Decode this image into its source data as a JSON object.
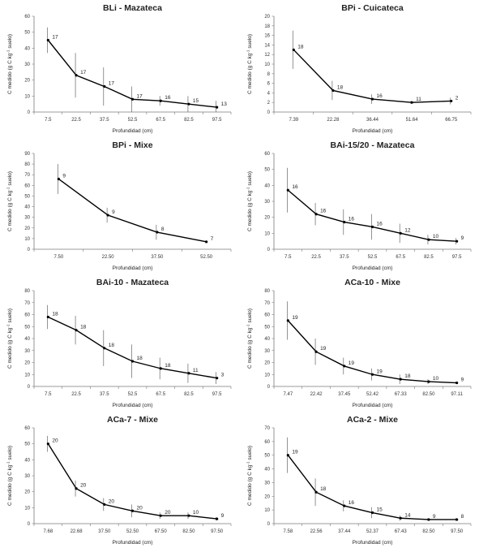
{
  "ylabel_prefix": "C medido (g C kg",
  "ylabel_sup": "-1",
  "ylabel_suffix": " suelo)",
  "chart_data": [
    {
      "type": "line",
      "title": "BLi - Mazateca",
      "xlabel": "Profundidad (cm)",
      "ylim": [
        0,
        60
      ],
      "yticks": [
        0,
        10,
        20,
        30,
        40,
        50,
        60
      ],
      "categories": [
        "7.5",
        "22.5",
        "37.5",
        "52.5",
        "67.5",
        "82.5",
        "97.5"
      ],
      "values": [
        45,
        23,
        16,
        8,
        7,
        5,
        3
      ],
      "err": [
        8,
        14,
        12,
        8,
        3,
        5,
        4
      ],
      "n": [
        "17",
        "17",
        "17",
        "17",
        "16",
        "15",
        "13"
      ]
    },
    {
      "type": "line",
      "title": "BPi - Cuicateca",
      "xlabel": "Profundidad (cm)",
      "ylim": [
        0,
        20
      ],
      "yticks": [
        0,
        2,
        4,
        6,
        8,
        10,
        12,
        14,
        16,
        18,
        20
      ],
      "categories": [
        "7.39",
        "22.28",
        "36.44",
        "51.64",
        "66.75"
      ],
      "values": [
        13,
        4.5,
        2.7,
        2,
        2.3
      ],
      "err": [
        4,
        2,
        1,
        0.3,
        0.7
      ],
      "n": [
        "18",
        "18",
        "16",
        "11",
        "2"
      ]
    },
    {
      "type": "line",
      "title": "BPi - Mixe",
      "xlabel": "Profundidad (cm)",
      "ylim": [
        0,
        90
      ],
      "yticks": [
        0,
        10,
        20,
        30,
        40,
        50,
        60,
        70,
        80,
        90
      ],
      "categories": [
        "7.50",
        "22.50",
        "37.50",
        "52.50"
      ],
      "values": [
        66,
        32,
        16,
        7
      ],
      "err": [
        14,
        7,
        7,
        1
      ],
      "n": [
        "9",
        "9",
        "8",
        "7"
      ]
    },
    {
      "type": "line",
      "title": "BAi-15/20 - Mazateca",
      "xlabel": "Profundidad (cm)",
      "ylim": [
        0,
        60
      ],
      "yticks": [
        0,
        10,
        20,
        30,
        40,
        50,
        60
      ],
      "categories": [
        "7.5",
        "22.5",
        "37.5",
        "52.5",
        "67.5",
        "82.5",
        "97.5"
      ],
      "values": [
        37,
        22,
        17,
        14,
        10,
        6,
        5
      ],
      "err": [
        14,
        7,
        8,
        8,
        6,
        3,
        2
      ],
      "n": [
        "16",
        "16",
        "16",
        "16",
        "12",
        "10",
        "9"
      ]
    },
    {
      "type": "line",
      "title": "BAi-10 - Mazateca",
      "xlabel": "Profundidad (cm)",
      "ylim": [
        0,
        80
      ],
      "yticks": [
        0,
        10,
        20,
        30,
        40,
        50,
        60,
        70,
        80
      ],
      "categories": [
        "7.5",
        "22.5",
        "37.5",
        "52.5",
        "67.5",
        "82.5",
        "97.5"
      ],
      "values": [
        58,
        47,
        32,
        21,
        15,
        11,
        7
      ],
      "err": [
        10,
        12,
        15,
        14,
        9,
        8,
        5
      ],
      "n": [
        "18",
        "18",
        "18",
        "18",
        "18",
        "11",
        "3"
      ]
    },
    {
      "type": "line",
      "title": "ACa-10 - Mixe",
      "xlabel": "Profundidad (cm)",
      "ylim": [
        0,
        80
      ],
      "yticks": [
        0,
        10,
        20,
        30,
        40,
        50,
        60,
        70,
        80
      ],
      "categories": [
        "7.47",
        "22.42",
        "37.45",
        "52.42",
        "67.33",
        "82.50",
        "97.11"
      ],
      "values": [
        55,
        29,
        17,
        10,
        6,
        4,
        3
      ],
      "err": [
        16,
        11,
        7,
        5,
        4,
        2,
        1
      ],
      "n": [
        "19",
        "19",
        "19",
        "19",
        "18",
        "10",
        "9"
      ]
    },
    {
      "type": "line",
      "title": "ACa-7 - Mixe",
      "xlabel": "Profundidad (cm)",
      "ylim": [
        0,
        60
      ],
      "yticks": [
        0,
        10,
        20,
        30,
        40,
        50,
        60
      ],
      "categories": [
        "7.68",
        "22.68",
        "37.50",
        "52.50",
        "67.50",
        "82.50",
        "97.50"
      ],
      "values": [
        50,
        22,
        12,
        8,
        5,
        5,
        3
      ],
      "err": [
        5,
        5,
        4,
        4,
        2,
        2,
        1
      ],
      "n": [
        "20",
        "20",
        "20",
        "20",
        "20",
        "10",
        "9"
      ]
    },
    {
      "type": "line",
      "title": "ACa-2 - Mixe",
      "xlabel": "Profundidad (cm)",
      "ylim": [
        0,
        70
      ],
      "yticks": [
        0,
        10,
        20,
        30,
        40,
        50,
        60,
        70
      ],
      "categories": [
        "7.58",
        "22.56",
        "37.44",
        "52.37",
        "67.43",
        "82.50",
        "97.50"
      ],
      "values": [
        50,
        23,
        13,
        8,
        4,
        3,
        3
      ],
      "err": [
        13,
        10,
        4,
        4,
        2,
        1,
        1
      ],
      "n": [
        "19",
        "18",
        "16",
        "15",
        "14",
        "9",
        "8"
      ]
    }
  ]
}
